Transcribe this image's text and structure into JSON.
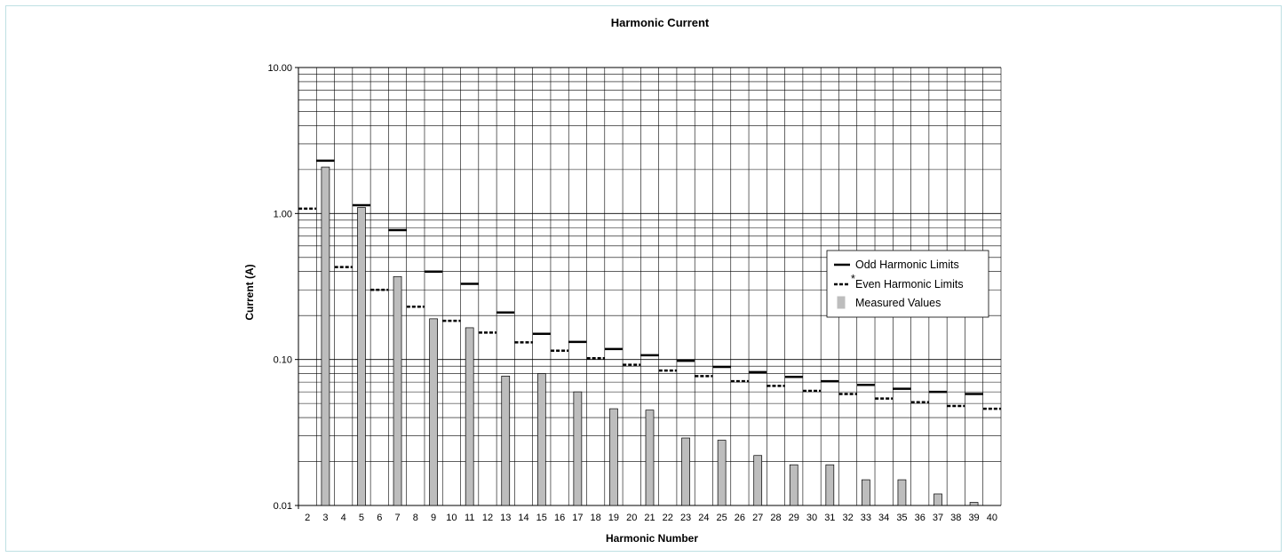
{
  "chart_data": {
    "type": "bar",
    "title": "Harmonic Current",
    "xlabel": "Harmonic Number",
    "ylabel": "Current (A)",
    "yscale": "log",
    "ylim": [
      0.01,
      10
    ],
    "y_ticks": [
      0.01,
      0.1,
      1,
      10
    ],
    "y_tick_labels": [
      "0.01",
      "0.10",
      "1.00",
      "10.00"
    ],
    "x_ticks": [
      2,
      3,
      4,
      5,
      6,
      7,
      8,
      9,
      10,
      11,
      12,
      13,
      14,
      15,
      16,
      17,
      18,
      19,
      20,
      21,
      22,
      23,
      24,
      25,
      26,
      27,
      28,
      29,
      30,
      31,
      32,
      33,
      34,
      35,
      36,
      37,
      38,
      39,
      40
    ],
    "grid": true,
    "legend_position": "right",
    "legend_marker": "*",
    "colors": {
      "bar_fill": "#bdbdbd",
      "bar_stroke": "#000000",
      "limit_line": "#000000",
      "grid": "#000000",
      "frame_border": "#bfe0e3"
    },
    "series": [
      {
        "name": "Odd Harmonic Limits",
        "style": "solid-line",
        "x": [
          3,
          5,
          7,
          9,
          11,
          13,
          15,
          17,
          19,
          21,
          23,
          25,
          27,
          29,
          31,
          33,
          35,
          37,
          39
        ],
        "values": [
          2.3,
          1.14,
          0.77,
          0.4,
          0.33,
          0.21,
          0.15,
          0.132,
          0.118,
          0.107,
          0.098,
          0.089,
          0.082,
          0.076,
          0.071,
          0.067,
          0.063,
          0.06,
          0.058
        ]
      },
      {
        "name": "Even Harmonic Limits",
        "style": "dashed-line",
        "x": [
          2,
          4,
          6,
          8,
          10,
          12,
          14,
          16,
          18,
          20,
          22,
          24,
          26,
          28,
          30,
          32,
          34,
          36,
          38,
          40
        ],
        "values": [
          1.08,
          0.43,
          0.3,
          0.23,
          0.184,
          0.153,
          0.131,
          0.115,
          0.102,
          0.092,
          0.084,
          0.077,
          0.071,
          0.066,
          0.061,
          0.058,
          0.054,
          0.051,
          0.048,
          0.046
        ]
      },
      {
        "name": "Measured Values",
        "style": "bar",
        "x": [
          3,
          5,
          7,
          9,
          11,
          13,
          15,
          17,
          19,
          21,
          23,
          25,
          27,
          29,
          31,
          33,
          35,
          37,
          39
        ],
        "values": [
          2.08,
          1.1,
          0.37,
          0.19,
          0.165,
          0.077,
          0.08,
          0.06,
          0.046,
          0.045,
          0.029,
          0.028,
          0.022,
          0.019,
          0.019,
          0.015,
          0.015,
          0.012,
          0.0105
        ]
      }
    ]
  }
}
